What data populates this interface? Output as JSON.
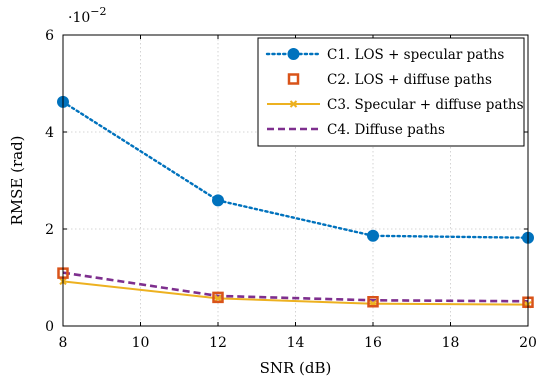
{
  "chart_data": {
    "type": "line",
    "x_values": [
      8,
      12,
      16,
      20
    ],
    "xlabel": "SNR (dB)",
    "ylabel": "RMSE (rad)",
    "xlim": [
      8,
      20
    ],
    "ylim": [
      0,
      6
    ],
    "y_scale_note": "·10^-2",
    "x_ticks": [
      8,
      10,
      12,
      14,
      16,
      18,
      20
    ],
    "y_ticks": [
      0,
      2,
      4,
      6
    ],
    "grid": true,
    "legend_position": "top-right",
    "series": [
      {
        "name": "C1. LOS + specular paths",
        "values": [
          4.62,
          2.59,
          1.86,
          1.82
        ],
        "color": "#0072BD",
        "line_style": "dotted",
        "marker": "circle"
      },
      {
        "name": "C2. LOS + diffuse paths",
        "values": [
          1.09,
          0.59,
          0.5,
          0.49
        ],
        "color": "#D95319",
        "line_style": "none",
        "marker": "square"
      },
      {
        "name": "C3. Specular + diffuse paths",
        "values": [
          0.92,
          0.57,
          0.46,
          0.44
        ],
        "color": "#EDB120",
        "line_style": "solid",
        "marker": "x"
      },
      {
        "name": "C4. Diffuse paths",
        "values": [
          1.1,
          0.62,
          0.53,
          0.51
        ],
        "color": "#7E2F8E",
        "line_style": "dashed",
        "marker": "none"
      }
    ]
  }
}
